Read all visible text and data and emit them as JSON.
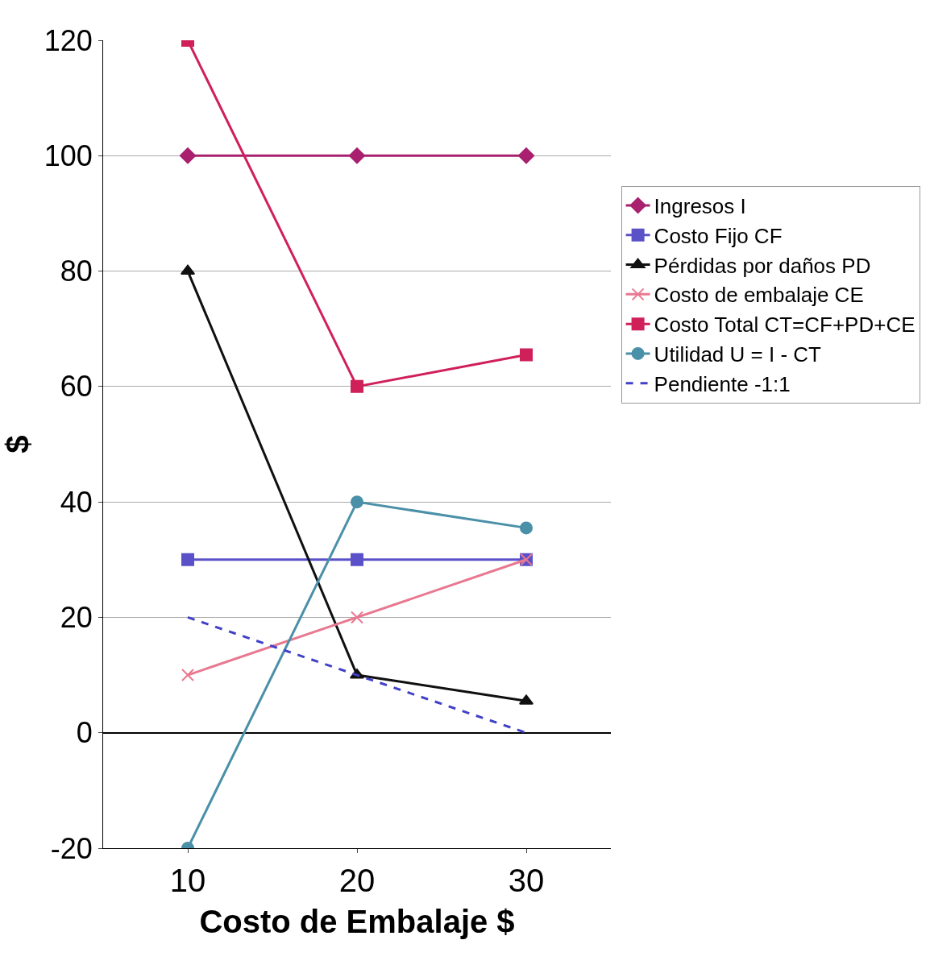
{
  "chart_data": {
    "type": "line",
    "xlabel": "Costo de Embalaje $",
    "ylabel": "$",
    "categories": [
      "10",
      "20",
      "30"
    ],
    "ylim": [
      -20,
      120
    ],
    "yticks": [
      -20,
      0,
      20,
      40,
      60,
      80,
      100,
      120
    ],
    "grid": "y",
    "legend": "right",
    "series": [
      {
        "name": "Ingresos I",
        "color": "#a8206e",
        "marker": "diamond",
        "values": [
          100,
          100,
          100
        ]
      },
      {
        "name": "Costo Fijo CF",
        "color": "#5a50c8",
        "marker": "square",
        "values": [
          30,
          30,
          30
        ]
      },
      {
        "name": "Pérdidas por daños PD",
        "color": "#101010",
        "marker": "triangle",
        "values": [
          80,
          10,
          5.5
        ]
      },
      {
        "name": "Costo de embalaje CE",
        "color": "#e87890",
        "marker": "cross",
        "values": [
          10,
          20,
          30
        ]
      },
      {
        "name": "Costo Total CT=CF+PD+CE",
        "color": "#d0205a",
        "marker": "square",
        "values": [
          120,
          60,
          65.5
        ]
      },
      {
        "name": "Utilidad U = I - CT",
        "color": "#4a90a8",
        "marker": "circle",
        "values": [
          -20,
          40,
          35.5
        ]
      },
      {
        "name": "Pendiente -1:1",
        "color": "#4040c8",
        "marker": "none",
        "line_style": "dashed",
        "values": [
          20,
          10,
          0
        ]
      }
    ]
  }
}
